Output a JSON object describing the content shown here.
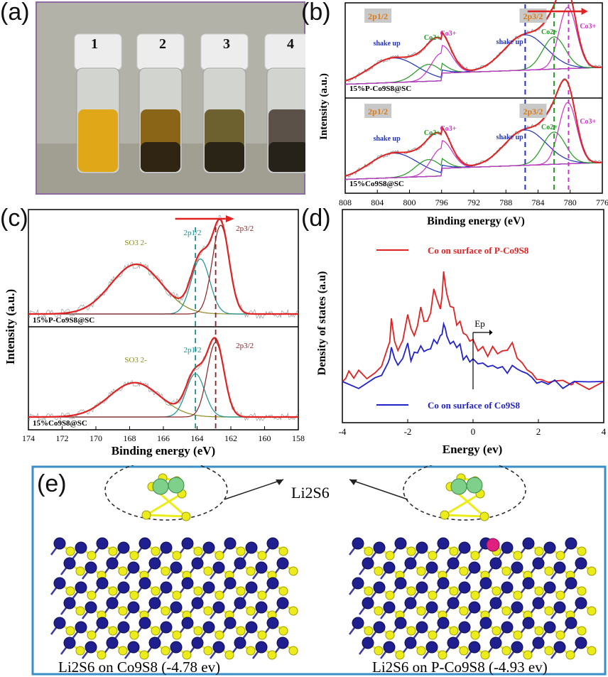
{
  "panel_labels": {
    "a": "(a)",
    "b": "(b)",
    "c": "(c)",
    "d": "(d)",
    "e": "(e)"
  },
  "panel_a": {
    "vials": [
      "1",
      "2",
      "3",
      "4"
    ],
    "colors": {
      "bg": "#b3b2a9",
      "border": "#8e6aa3",
      "liquid1": "#e0a818",
      "liquid2": "#8a6417",
      "liquid3": "#6e6130",
      "liquid4": "#5b5148",
      "cap": "#ededed"
    }
  },
  "panel_b": {
    "ylabel": "Intensity (a.u.)",
    "xlabel": "Binding energy (eV)",
    "xticks": [
      "808",
      "804",
      "800",
      "796",
      "792",
      "788",
      "784",
      "780",
      "776"
    ],
    "top": {
      "sample": "15%P-Co9S8@SC",
      "labels": {
        "p12": "2p1/2",
        "p32": "2p3/2",
        "shake1": "shake up",
        "co2a": "Co2+",
        "co3a": "Co3+",
        "shake2": "shake up",
        "co2b": "Co2+",
        "co3b": "Co3+"
      }
    },
    "bottom": {
      "sample": "15%Co9S8@SC",
      "labels": {
        "p12": "2p1/2",
        "p32": "2p3/2",
        "shake1": "shake up",
        "co2a": "Co2+",
        "co3a": "Co3+",
        "shake2": "shake up",
        "co2b": "Co2+",
        "co3b": "Co3+"
      }
    }
  },
  "panel_c": {
    "ylabel": "Intensity (a.u.)",
    "xlabel": "Binding energy (eV)",
    "xticks": [
      "174",
      "172",
      "170",
      "168",
      "166",
      "164",
      "162",
      "160",
      "158"
    ],
    "top": {
      "sample": "15%P-Co9S8@SC",
      "so3": "SO3 2-",
      "p12": "2p1/2",
      "p32": "2p3/2"
    },
    "bottom": {
      "sample": "15%Co9S8@SC",
      "so3": "SO3 2-",
      "p12": "2p1/2",
      "p32": "2p3/2"
    }
  },
  "panel_d": {
    "ylabel": "Density of states (a.u)",
    "xlabel": "Energy (ev)",
    "xticks": [
      "-4",
      "-2",
      "0",
      "2",
      "4"
    ],
    "legend_red": "Co on surface of P-Co9S8",
    "legend_blue": "Co on surface of Co9S8",
    "ep": "Ep"
  },
  "panel_e": {
    "center_label": "Li2S6",
    "left_caption": "Li2S6 on Co9S8 (-4.78 ev)",
    "right_caption": "Li2S6 on P-Co9S8 (-4.93 ev)",
    "colors": {
      "co": "#1f1f8f",
      "s": "#ecec1a",
      "li": "#7fd08a",
      "p": "#e0207f",
      "frame": "#3a8fc9"
    }
  },
  "chart_data": [
    {
      "type": "line",
      "title": "",
      "xlabel": "Binding energy (eV)",
      "ylabel": "Intensity (a.u.)",
      "xlim": [
        808,
        776
      ],
      "series": [
        {
          "name": "15%P-Co9S8@SC",
          "x": [
            808,
            804,
            802,
            800,
            798,
            796,
            794,
            792,
            790,
            788,
            786,
            784,
            782,
            780,
            778,
            776
          ],
          "values": [
            0.12,
            0.3,
            0.35,
            0.3,
            0.42,
            0.62,
            0.38,
            0.22,
            0.3,
            0.45,
            0.58,
            0.6,
            0.62,
            0.98,
            0.4,
            0.15
          ]
        },
        {
          "name": "15%Co9S8@SC",
          "x": [
            808,
            804,
            802,
            800,
            798,
            796,
            794,
            792,
            790,
            788,
            786,
            784,
            782,
            780,
            778,
            776
          ],
          "values": [
            0.12,
            0.32,
            0.36,
            0.3,
            0.4,
            0.6,
            0.36,
            0.22,
            0.3,
            0.48,
            0.56,
            0.52,
            0.66,
            0.98,
            0.42,
            0.14
          ]
        }
      ]
    },
    {
      "type": "line",
      "title": "",
      "xlabel": "Binding energy (eV)",
      "ylabel": "Intensity (a.u.)",
      "xlim": [
        174,
        158
      ],
      "series": [
        {
          "name": "15%P-Co9S8@SC",
          "x": [
            174,
            172,
            170,
            168,
            167.5,
            166,
            165,
            164,
            163.8,
            163,
            162.6,
            162,
            161,
            160,
            158
          ],
          "values": [
            0.05,
            0.08,
            0.3,
            0.58,
            0.6,
            0.4,
            0.3,
            0.62,
            0.72,
            0.7,
            1.0,
            0.6,
            0.1,
            0.04,
            0.02
          ]
        },
        {
          "name": "15%Co9S8@SC",
          "x": [
            174,
            172,
            170,
            168,
            167.6,
            166,
            165,
            164.2,
            164,
            163.2,
            162.9,
            162,
            161,
            160,
            158
          ],
          "values": [
            0.05,
            0.08,
            0.3,
            0.5,
            0.52,
            0.35,
            0.3,
            0.65,
            0.7,
            0.75,
            1.0,
            0.55,
            0.1,
            0.04,
            0.02
          ]
        }
      ]
    },
    {
      "type": "line",
      "title": "",
      "xlabel": "Energy (ev)",
      "ylabel": "Density of states (a.u)",
      "xlim": [
        -4,
        4
      ],
      "series": [
        {
          "name": "Co on surface of P-Co9S8",
          "x": [
            -4,
            -3.8,
            -3.5,
            -3,
            -2.6,
            -2.5,
            -2.3,
            -2,
            -1.8,
            -1.6,
            -1.4,
            -1.2,
            -1,
            -0.9,
            -0.8,
            -0.6,
            -0.4,
            -0.2,
            0,
            0.3,
            0.6,
            0.9,
            1.2,
            1.5,
            1.8,
            2.1,
            2.5,
            3,
            3.1,
            4
          ],
          "values": [
            0,
            0.05,
            0.1,
            0.05,
            0.3,
            0.55,
            0.25,
            0.6,
            0.45,
            0.7,
            0.55,
            0.85,
            0.7,
            1.0,
            0.8,
            0.65,
            0.5,
            0.4,
            0.35,
            0.3,
            0.28,
            0.25,
            0.32,
            0.2,
            0.12,
            0.05,
            0.03,
            0.02,
            0,
            0
          ]
        },
        {
          "name": "Co on surface of Co9S8",
          "x": [
            -4,
            -3,
            -2.6,
            -2.5,
            -2.3,
            -2,
            -1.8,
            -1.6,
            -1.4,
            -1.2,
            -1,
            -0.9,
            -0.8,
            -0.6,
            -0.4,
            -0.2,
            0,
            0.3,
            0.6,
            0.9,
            1.2,
            1.5,
            1.8,
            2.1,
            2.5,
            3,
            3.1,
            4
          ],
          "values": [
            0,
            0.02,
            0.15,
            0.3,
            0.12,
            0.3,
            0.22,
            0.35,
            0.3,
            0.4,
            0.42,
            0.55,
            0.45,
            0.38,
            0.3,
            0.22,
            0.18,
            0.16,
            0.14,
            0.12,
            0.14,
            0.1,
            0.06,
            0.03,
            0.02,
            0.01,
            0,
            0
          ]
        }
      ]
    }
  ]
}
